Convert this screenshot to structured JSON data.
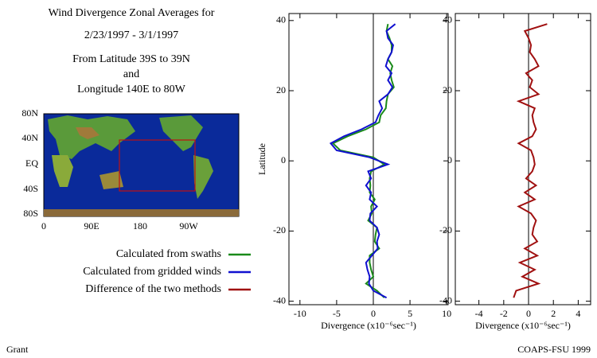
{
  "header": {
    "lines": [
      "Wind Divergence Zonal Averages for",
      "2/23/1997 - 3/1/1997",
      "From Latitude 39S to 39N",
      "and",
      "Longitude 140E to 80W"
    ]
  },
  "map": {
    "yticks": [
      "80N",
      "40N",
      "EQ",
      "40S",
      "80S"
    ],
    "xticks": [
      "0",
      "90E",
      "180",
      "90W"
    ]
  },
  "footer": {
    "left": "Grant",
    "right": "COAPS-FSU 1999"
  },
  "chart_data": [
    {
      "type": "line",
      "y_label": "Latitude",
      "x_label": "Divergence (x10⁻⁶sec⁻¹)",
      "xlim": [
        -11.5,
        10.2
      ],
      "xticks": [
        -10,
        -5,
        0,
        5,
        10
      ],
      "ylim": [
        -41,
        42
      ],
      "yticks": [
        -40,
        -20,
        0,
        20,
        40
      ],
      "vline": 0,
      "y": [
        39,
        37,
        35,
        33,
        31,
        29,
        27,
        25,
        23,
        21,
        19,
        17,
        15,
        13,
        11,
        9,
        7,
        5,
        3,
        1,
        -1,
        -3,
        -5,
        -7,
        -9,
        -11,
        -13,
        -15,
        -17,
        -19,
        -21,
        -23,
        -25,
        -27,
        -29,
        -31,
        -33,
        -35,
        -37,
        -39
      ],
      "series": [
        {
          "name": "Calculated from swaths",
          "color": "#1a8a1a",
          "values": [
            2.0,
            1.8,
            2.2,
            2.5,
            2.5,
            2.0,
            2.6,
            2.3,
            2.5,
            2.8,
            2.0,
            1.8,
            1.7,
            1.0,
            0.8,
            -1.0,
            -3.5,
            -5.5,
            -4.5,
            0.0,
            1.5,
            -0.3,
            -0.5,
            -0.4,
            -0.5,
            0.2,
            -0.3,
            -0.2,
            -0.7,
            0.5,
            0.3,
            0.2,
            0.8,
            -0.5,
            -0.5,
            -0.3,
            0.0,
            -1.0,
            0.5,
            1.5
          ]
        },
        {
          "name": "Calculated from gridded winds",
          "color": "#1010d0",
          "values": [
            3.0,
            1.8,
            2.0,
            2.7,
            2.5,
            2.0,
            1.7,
            2.5,
            2.0,
            2.6,
            2.0,
            0.8,
            1.2,
            0.7,
            0.3,
            -1.6,
            -4.0,
            -5.8,
            -5.0,
            -0.5,
            2.0,
            -0.7,
            -0.3,
            -1.0,
            -0.3,
            -0.5,
            0.5,
            -0.4,
            -0.5,
            0.5,
            0.8,
            0.5,
            0.6,
            -0.2,
            -1.0,
            -0.8,
            -0.5,
            -0.6,
            0.0,
            1.8
          ]
        }
      ]
    },
    {
      "type": "line",
      "x_label": "Divergence (x10⁻⁶sec⁻¹)",
      "xlim": [
        -5.9,
        5.0
      ],
      "xticks": [
        -4,
        -2,
        0,
        2,
        4
      ],
      "ylim": [
        -41,
        42
      ],
      "yticks": [
        -40,
        -20,
        0,
        20,
        40
      ],
      "vline": 0,
      "y": [
        39,
        37,
        35,
        33,
        31,
        29,
        27,
        25,
        23,
        21,
        19,
        17,
        15,
        13,
        11,
        9,
        7,
        5,
        3,
        1,
        -1,
        -3,
        -5,
        -7,
        -9,
        -11,
        -13,
        -15,
        -17,
        -19,
        -21,
        -23,
        -25,
        -27,
        -29,
        -31,
        -33,
        -35,
        -37,
        -39
      ],
      "series": [
        {
          "name": "Difference of the two methods",
          "color": "#a01010",
          "values": [
            1.5,
            -0.3,
            0.0,
            0.2,
            0.1,
            0.5,
            0.8,
            -0.2,
            0.3,
            0.1,
            0.8,
            -0.8,
            0.5,
            0.3,
            0.4,
            0.6,
            0.3,
            -0.8,
            0.2,
            0.4,
            0.5,
            0.3,
            -0.2,
            0.6,
            -0.3,
            0.5,
            -0.8,
            0.2,
            0.6,
            0.4,
            0.3,
            0.7,
            -0.3,
            0.7,
            -0.7,
            0.5,
            -0.5,
            0.8,
            -1.0,
            -1.2
          ]
        }
      ]
    }
  ]
}
